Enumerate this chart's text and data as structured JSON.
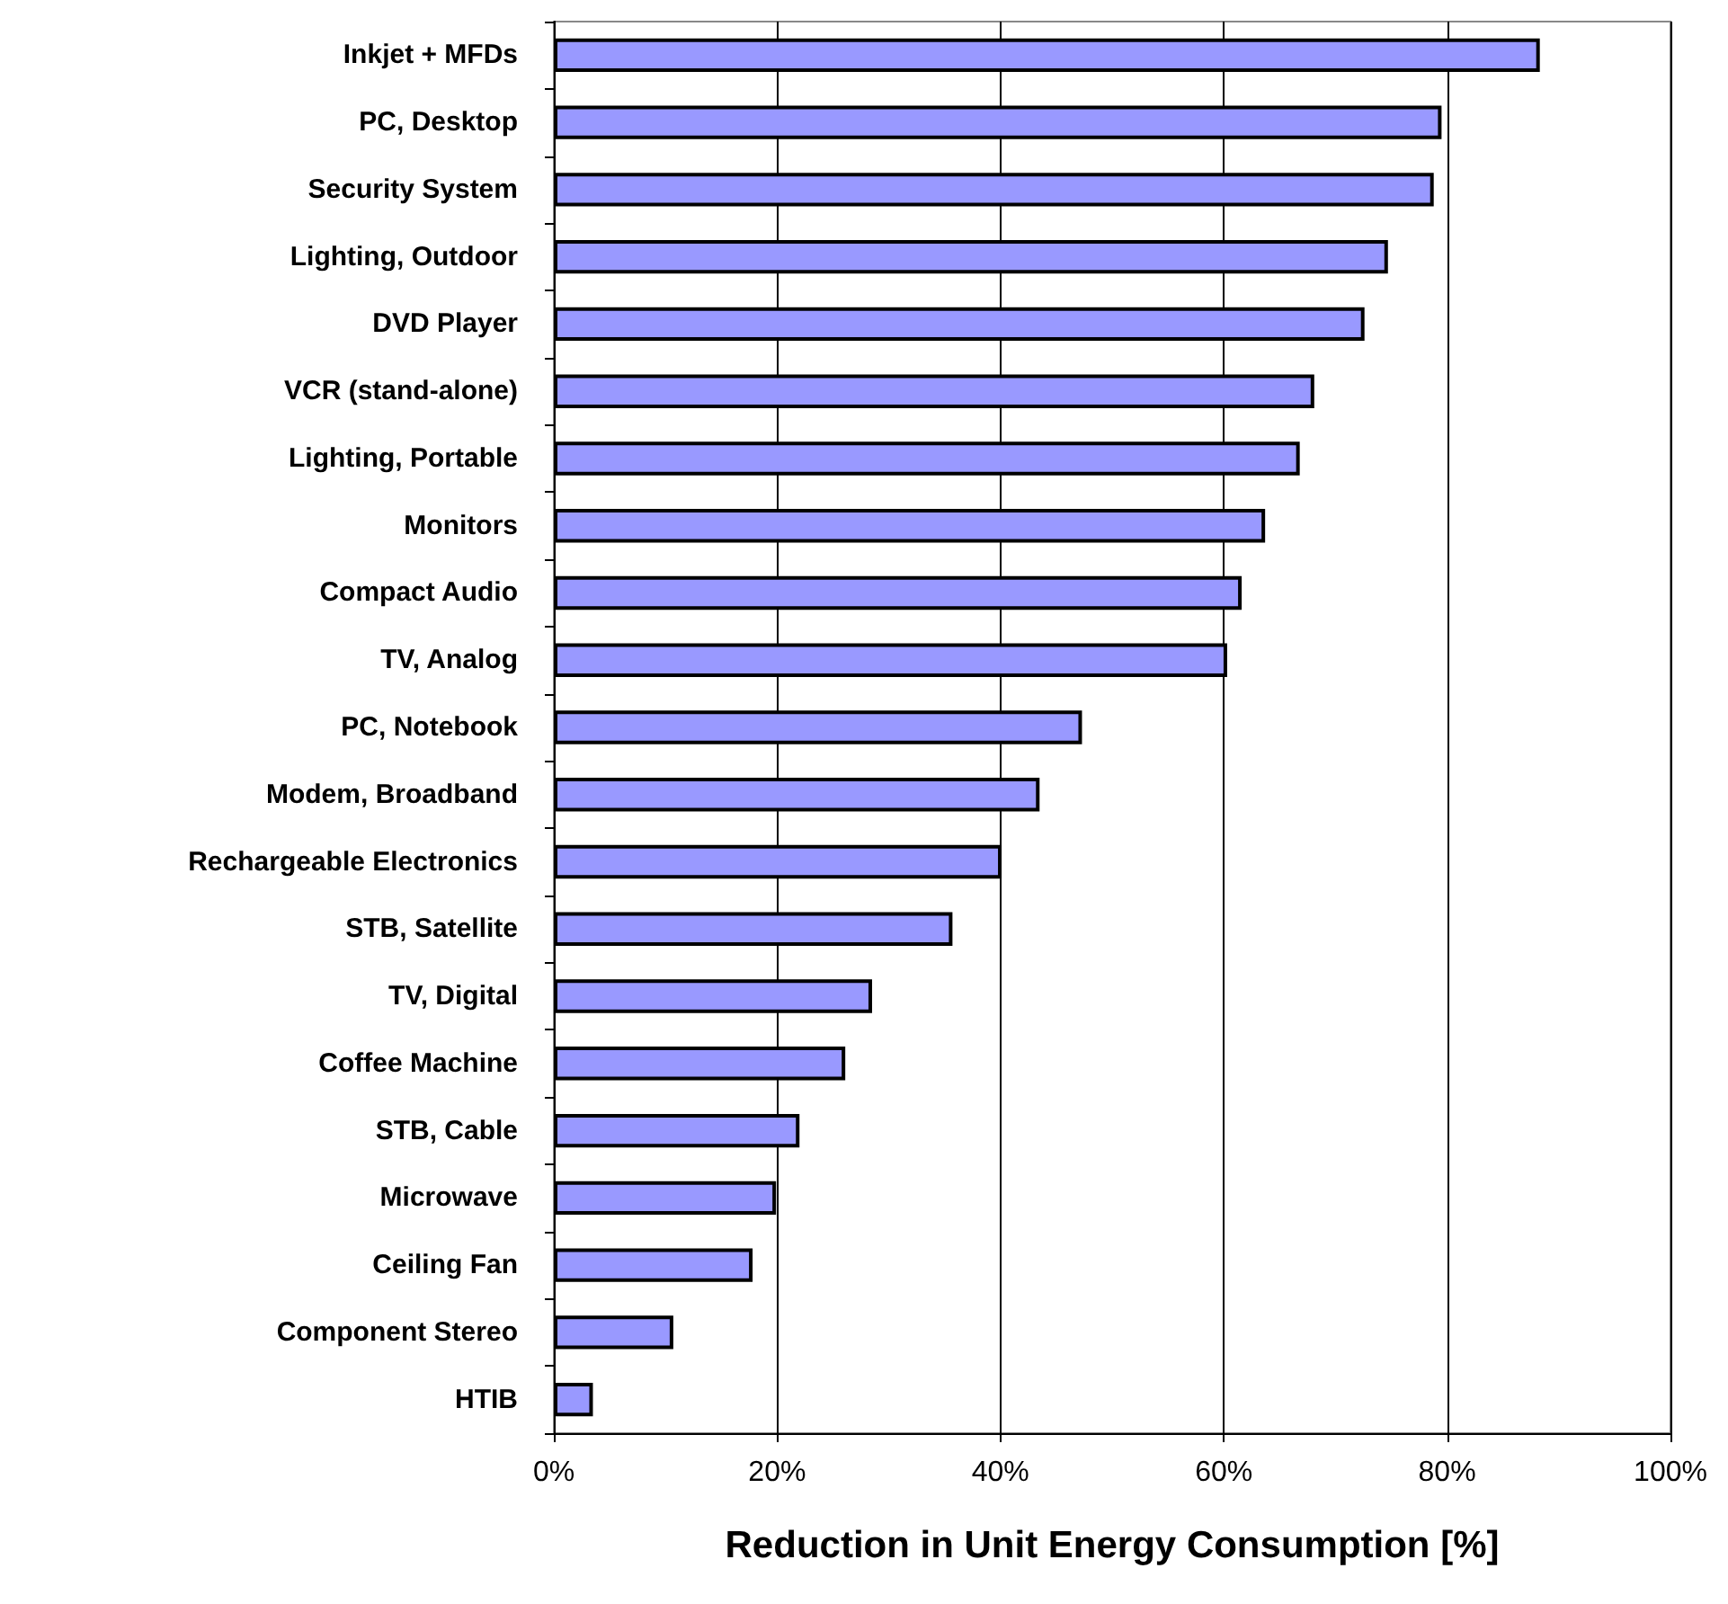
{
  "chart_data": {
    "type": "bar",
    "orientation": "horizontal",
    "xlabel": "Reduction in Unit Energy Consumption [%]",
    "categories": [
      "Inkjet + MFDs",
      "PC, Desktop",
      "Security System",
      "Lighting, Outdoor",
      "DVD Player",
      "VCR (stand-alone)",
      "Lighting, Portable",
      "Monitors",
      "Compact Audio",
      "TV, Analog",
      "PC, Notebook",
      "Modem, Broadband",
      "Rechargeable Electronics",
      "STB, Satellite",
      "TV, Digital",
      "Coffee Machine",
      "STB, Cable",
      "Microwave",
      "Ceiling Fan",
      "Component Stereo",
      "HTIB"
    ],
    "values": [
      88.3,
      79.5,
      78.8,
      74.7,
      72.6,
      68.1,
      66.8,
      63.7,
      61.6,
      60.3,
      47.3,
      43.5,
      40.1,
      35.7,
      28.5,
      26.1,
      22.0,
      19.9,
      17.8,
      10.7,
      3.5
    ],
    "color": "#9999ff",
    "xlim": [
      0,
      100
    ],
    "xticks": [
      {
        "value": 0,
        "label": "0%"
      },
      {
        "value": 20,
        "label": "20%"
      },
      {
        "value": 40,
        "label": "40%"
      },
      {
        "value": 60,
        "label": "60%"
      },
      {
        "value": 80,
        "label": "80%"
      },
      {
        "value": 100,
        "label": "100%"
      }
    ],
    "grid": "x"
  }
}
